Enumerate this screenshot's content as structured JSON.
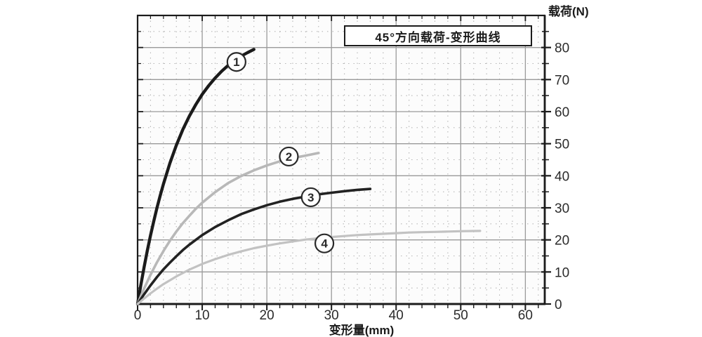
{
  "page": {
    "background": "#ffffff"
  },
  "chart_data": {
    "type": "line",
    "title": "45°方向载荷-变形曲线",
    "xlabel": "变形量(mm)",
    "ylabel": "载荷(N)",
    "xlim": [
      0,
      63
    ],
    "ylim": [
      0,
      90
    ],
    "x_ticks": [
      0,
      10,
      20,
      30,
      40,
      50,
      60
    ],
    "y_ticks": [
      0,
      10,
      20,
      30,
      40,
      50,
      60,
      70,
      80
    ],
    "x_minor_step": 2,
    "y_minor_step": 5,
    "grid": {
      "major_color": "#9a9a9a",
      "minor_color": "#b5b5b5",
      "major_style": "solid",
      "minor_style": "dotted",
      "frame_color": "#1b1b1b",
      "plot_bg": "#fcfcfc"
    },
    "legend_position": "none",
    "series": [
      {
        "name": "curve-1",
        "label": "1",
        "color": "#1b1b1b",
        "width": 4.4,
        "marker_at": [
          15.3,
          75.5
        ],
        "points": [
          [
            0,
            0
          ],
          [
            0.5,
            5.9
          ],
          [
            1,
            11.4
          ],
          [
            1.5,
            16.6
          ],
          [
            2,
            21.4
          ],
          [
            2.5,
            25.8
          ],
          [
            3,
            30.0
          ],
          [
            3.5,
            33.8
          ],
          [
            4,
            37.4
          ],
          [
            5,
            43.9
          ],
          [
            6,
            49.5
          ],
          [
            7,
            54.4
          ],
          [
            8,
            58.6
          ],
          [
            9,
            62.2
          ],
          [
            10,
            65.4
          ],
          [
            11,
            68.1
          ],
          [
            12,
            70.5
          ],
          [
            13,
            72.6
          ],
          [
            14,
            74.4
          ],
          [
            15,
            75.9
          ],
          [
            16,
            77.3
          ],
          [
            17,
            78.4
          ],
          [
            18,
            79.4
          ]
        ]
      },
      {
        "name": "curve-2",
        "label": "2",
        "color": "#b8b8b8",
        "width": 3.6,
        "marker_at": [
          23.4,
          46.0
        ],
        "points": [
          [
            0,
            0
          ],
          [
            1,
            4.8
          ],
          [
            2,
            9.1
          ],
          [
            3,
            13.0
          ],
          [
            4,
            16.5
          ],
          [
            5,
            19.7
          ],
          [
            6,
            22.6
          ],
          [
            7,
            25.2
          ],
          [
            8,
            27.5
          ],
          [
            9,
            29.7
          ],
          [
            10,
            31.6
          ],
          [
            12,
            34.9
          ],
          [
            14,
            37.7
          ],
          [
            16,
            39.9
          ],
          [
            18,
            41.7
          ],
          [
            20,
            43.2
          ],
          [
            22,
            44.5
          ],
          [
            24,
            45.5
          ],
          [
            26,
            46.3
          ],
          [
            28,
            47.1
          ]
        ]
      },
      {
        "name": "curve-3",
        "label": "3",
        "color": "#222222",
        "width": 3.6,
        "marker_at": [
          26.8,
          33.3
        ],
        "points": [
          [
            0,
            0
          ],
          [
            1,
            3.0
          ],
          [
            2,
            5.8
          ],
          [
            3,
            8.4
          ],
          [
            4,
            10.8
          ],
          [
            5,
            12.9
          ],
          [
            6,
            14.9
          ],
          [
            7,
            16.8
          ],
          [
            8,
            18.5
          ],
          [
            10,
            21.5
          ],
          [
            12,
            24.0
          ],
          [
            14,
            26.1
          ],
          [
            16,
            28.0
          ],
          [
            18,
            29.5
          ],
          [
            20,
            30.8
          ],
          [
            22,
            31.9
          ],
          [
            24,
            32.8
          ],
          [
            26,
            33.5
          ],
          [
            28,
            34.2
          ],
          [
            30,
            34.7
          ],
          [
            32,
            35.2
          ],
          [
            34,
            35.6
          ],
          [
            36,
            35.9
          ]
        ]
      },
      {
        "name": "curve-4",
        "label": "4",
        "color": "#c2c2c2",
        "width": 3.2,
        "marker_at": [
          28.9,
          18.9
        ],
        "points": [
          [
            0,
            0
          ],
          [
            1,
            1.7
          ],
          [
            2,
            3.3
          ],
          [
            3,
            4.8
          ],
          [
            4,
            6.2
          ],
          [
            5,
            7.4
          ],
          [
            6,
            8.6
          ],
          [
            8,
            10.7
          ],
          [
            10,
            12.5
          ],
          [
            12,
            14.0
          ],
          [
            14,
            15.3
          ],
          [
            16,
            16.4
          ],
          [
            18,
            17.4
          ],
          [
            20,
            18.2
          ],
          [
            22,
            18.9
          ],
          [
            24,
            19.5
          ],
          [
            26,
            20.1
          ],
          [
            28,
            20.5
          ],
          [
            30,
            20.9
          ],
          [
            32,
            21.2
          ],
          [
            34,
            21.5
          ],
          [
            36,
            21.7
          ],
          [
            38,
            21.9
          ],
          [
            40,
            22.1
          ],
          [
            42,
            22.3
          ],
          [
            44,
            22.4
          ],
          [
            46,
            22.5
          ],
          [
            48,
            22.6
          ],
          [
            50,
            22.7
          ],
          [
            53,
            22.8
          ]
        ]
      }
    ],
    "marker_style": {
      "radius": 13,
      "fill": "#ffffff",
      "stroke": "#2a2a2a",
      "text_color": "#2a2a2a"
    },
    "tick_label_color": "#2b2b2b"
  }
}
